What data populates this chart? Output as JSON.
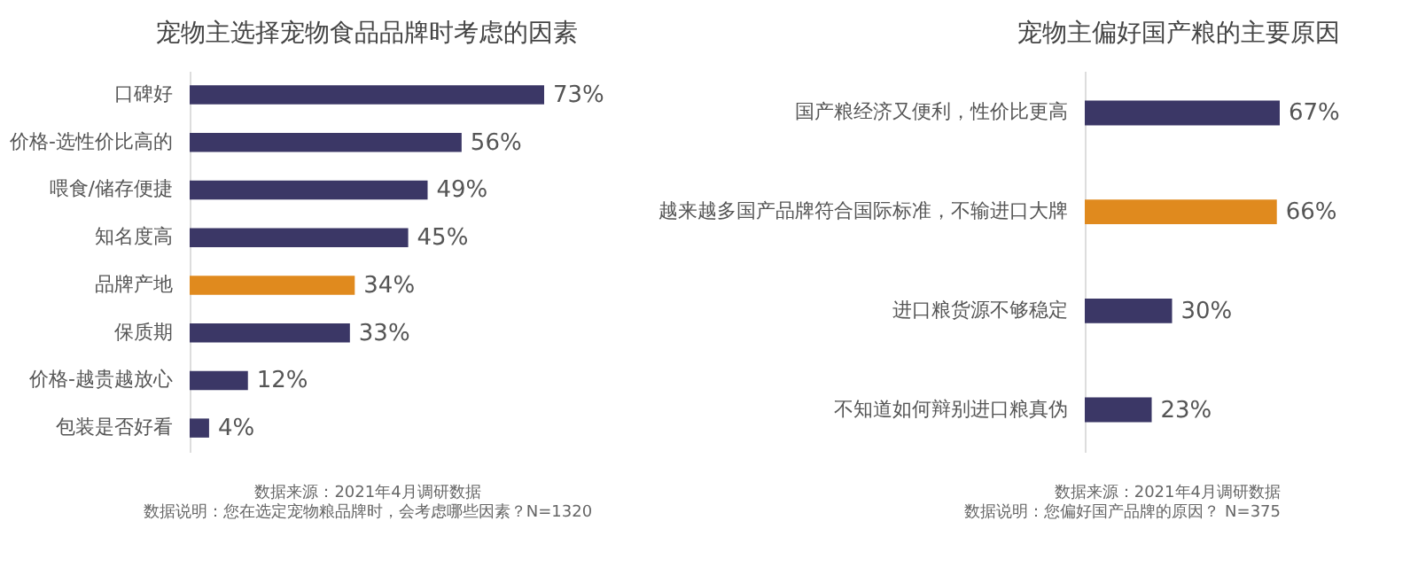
{
  "chart_data": [
    {
      "type": "bar",
      "orientation": "horizontal",
      "title": "宠物主选择宠物食品品牌时考虑的因素",
      "categories": [
        "口碑好",
        "价格-选性价比高的",
        "喂食/储存便捷",
        "知名度高",
        "品牌产地",
        "保质期",
        "价格-越贵越放心",
        "包装是否好看"
      ],
      "values": [
        73,
        56,
        49,
        45,
        34,
        33,
        12,
        4
      ],
      "value_labels": [
        "73%",
        "56%",
        "49%",
        "45%",
        "34%",
        "33%",
        "12%",
        "4%"
      ],
      "colors": [
        "#3b3766",
        "#3b3766",
        "#3b3766",
        "#3b3766",
        "#e08a1e",
        "#3b3766",
        "#3b3766",
        "#3b3766"
      ],
      "annotations": [
        "数据来源：2021年4月调研数据",
        "数据说明：您在选定宠物粮品牌时，会考虑哪些因素？N=1320"
      ]
    },
    {
      "type": "bar",
      "orientation": "horizontal",
      "title": "宠物主偏好国产粮的主要原因",
      "categories": [
        "国产粮经济又便利，性价比更高",
        "越来越多国产品牌符合国际标准，不输进口大牌",
        "进口粮货源不够稳定",
        "不知道如何辩别进口粮真伪"
      ],
      "values": [
        67,
        66,
        30,
        23
      ],
      "value_labels": [
        "67%",
        "66%",
        "30%",
        "23%"
      ],
      "colors": [
        "#3b3766",
        "#e08a1e",
        "#3b3766",
        "#3b3766"
      ],
      "annotations": [
        "数据来源：2021年4月调研数据",
        "数据说明：您偏好国产品牌的原因？ N=375"
      ]
    }
  ]
}
